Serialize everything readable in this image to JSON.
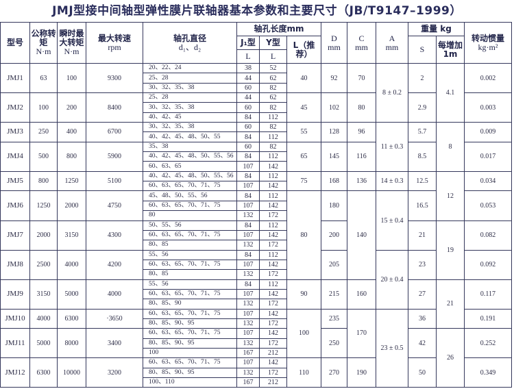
{
  "title": "JMJ型接中间轴型弹性膜片联轴器基本参数和主要尺寸（JB/T9147–1999）",
  "header": {
    "model": "型号",
    "torque": "公称转矩",
    "torque_unit": "N·m",
    "max_torque": "瞬时最大转矩",
    "max_torque_unit": "N·m",
    "speed": "最大转速",
    "speed_unit": "rpm",
    "bore": "轴孔直径",
    "bore_sub": "d₁、d₂",
    "bore_len": "轴孔长度mm",
    "j1": "J₁型",
    "y": "Y型",
    "l": "L",
    "l_rec": "L（推荐）",
    "d": "D",
    "d_unit": "mm",
    "c": "C",
    "c_unit": "mm",
    "a": "A",
    "a_unit": "mm",
    "weight": "重量 kg",
    "s": "S",
    "per_m": "每增加1m",
    "inertia": "转动惯量",
    "inertia_unit": "kg·m²"
  },
  "models": [
    {
      "model": "JMJ1",
      "torque": "63",
      "max_torque": "100",
      "speed": "9300",
      "D": "92",
      "S": "2",
      "inertia": "0.002",
      "bores": [
        [
          "20、22、24",
          "38",
          "52"
        ],
        [
          "25、28",
          "44",
          "62"
        ],
        [
          "30、32、35、38",
          "60",
          "82"
        ]
      ]
    },
    {
      "model": "JMJ2",
      "torque": "100",
      "max_torque": "200",
      "speed": "8400",
      "D": "102",
      "S": "2.9",
      "inertia": "0.003",
      "bores": [
        [
          "25、28",
          "44",
          "62"
        ],
        [
          "30、32、35、38",
          "60",
          "82"
        ],
        [
          "40、42、45",
          "84",
          "112"
        ]
      ]
    },
    {
      "model": "JMJ3",
      "torque": "250",
      "max_torque": "400",
      "speed": "6700",
      "D": "128",
      "S": "5.7",
      "inertia": "0.009",
      "bores": [
        [
          "30、32、35、38",
          "60",
          "82"
        ],
        [
          "40、42、45、48、50、55",
          "84",
          "112"
        ]
      ]
    },
    {
      "model": "JMJ4",
      "torque": "500",
      "max_torque": "800",
      "speed": "5900",
      "D": "145",
      "S": "8.5",
      "inertia": "0.017",
      "bores": [
        [
          "35、38",
          "60",
          "82"
        ],
        [
          "40、42、45、48、50、55、56",
          "84",
          "112"
        ],
        [
          "60、63、65",
          "107",
          "142"
        ]
      ]
    },
    {
      "model": "JMJ5",
      "torque": "800",
      "max_torque": "1250",
      "speed": "5100",
      "D": "168",
      "S": "12.5",
      "inertia": "0.034",
      "bores": [
        [
          "40、42、45、48、50、55、56",
          "84",
          "112"
        ],
        [
          "60、63、65、70、71、75",
          "107",
          "142"
        ]
      ]
    },
    {
      "model": "JMJ6",
      "torque": "1250",
      "max_torque": "2000",
      "speed": "4750",
      "D": "180",
      "S": "16.5",
      "inertia": "0.053",
      "bores": [
        [
          "45、48、50、55、56",
          "84",
          "112"
        ],
        [
          "60、63、65、70、71、75",
          "107",
          "142"
        ],
        [
          "80",
          "132",
          "172"
        ]
      ]
    },
    {
      "model": "JMJ7",
      "torque": "2000",
      "max_torque": "3150",
      "speed": "4300",
      "D": "200",
      "S": "21",
      "inertia": "0.082",
      "bores": [
        [
          "50、55、56",
          "84",
          "112"
        ],
        [
          "60、63、65、70、71、75",
          "107",
          "142"
        ],
        [
          "80、85",
          "132",
          "172"
        ]
      ]
    },
    {
      "model": "JMJ8",
      "torque": "2500",
      "max_torque": "4000",
      "speed": "4200",
      "D": "205",
      "S": "23",
      "inertia": "0.092",
      "bores": [
        [
          "55、56",
          "84",
          "112"
        ],
        [
          "60、63、65、70、71、75",
          "107",
          "142"
        ],
        [
          "80、85",
          "132",
          "172"
        ]
      ]
    },
    {
      "model": "JMJ9",
      "torque": "3150",
      "max_torque": "5000",
      "speed": "4000",
      "D": "215",
      "S": "27",
      "inertia": "0.117",
      "bores": [
        [
          "55、56",
          "84",
          "112"
        ],
        [
          "60、63、65、70、71、75",
          "107",
          "142"
        ],
        [
          "80、85、90",
          "132",
          "172"
        ]
      ]
    },
    {
      "model": "JMJ10",
      "torque": "4000",
      "max_torque": "6300",
      "speed": "·3650",
      "D": "235",
      "S": "36",
      "inertia": "0.191",
      "bores": [
        [
          "60、63、65、70、71、75",
          "107",
          "142"
        ],
        [
          "80、85、90、95",
          "132",
          "172"
        ]
      ]
    },
    {
      "model": "JMJ11",
      "torque": "5000",
      "max_torque": "8000",
      "speed": "3400",
      "D": "250",
      "S": "42",
      "inertia": "0.252",
      "bores": [
        [
          "60、63、65、70、71、75",
          "107",
          "142"
        ],
        [
          "80、85、90、95",
          "132",
          "172"
        ],
        [
          "100",
          "167",
          "212"
        ]
      ]
    },
    {
      "model": "JMJ12",
      "torque": "6300",
      "max_torque": "10000",
      "speed": "3200",
      "D": "270",
      "S": "50",
      "inertia": "0.349",
      "bores": [
        [
          "60、63、65、70、71、75",
          "107",
          "142"
        ],
        [
          "80、85、90、95",
          "132",
          "172"
        ],
        [
          "100、110",
          "167",
          "212"
        ]
      ]
    }
  ],
  "merged": {
    "L": [
      {
        "v": "40",
        "models": 1
      },
      {
        "v": "45",
        "models": 1
      },
      {
        "v": "55",
        "models": 1
      },
      {
        "v": "65",
        "models": 1
      },
      {
        "v": "75",
        "models": 1
      },
      {
        "v": "80",
        "models": 3
      },
      {
        "v": "90",
        "models": 1
      },
      {
        "v": "100",
        "models": 2
      },
      {
        "v": "110",
        "models": 1
      }
    ],
    "C": [
      {
        "v": "70",
        "models": 1
      },
      {
        "v": "80",
        "models": 1
      },
      {
        "v": "96",
        "models": 1
      },
      {
        "v": "116",
        "models": 1
      },
      {
        "v": "136",
        "models": 1
      },
      {
        "v": "140",
        "models": 3
      },
      {
        "v": "160",
        "models": 1
      },
      {
        "v": "170",
        "models": 2
      },
      {
        "v": "190",
        "models": 1
      }
    ],
    "A": [
      {
        "v": "8 ± 0.2",
        "models": 2
      },
      {
        "v": "11 ± 0.3",
        "models": 2
      },
      {
        "v": "14 ± 0.3",
        "models": 1
      },
      {
        "v": "15 ± 0.4",
        "models": 2
      },
      {
        "v": "20 ± 0.4",
        "models": 2
      },
      {
        "v": "23 ± 0.5",
        "models": 3
      }
    ],
    "per_m": [
      {
        "v": "4.1",
        "models": 2
      },
      {
        "v": "8",
        "models": 2
      },
      {
        "v": "12",
        "models": 2
      },
      {
        "v": "19",
        "models": 2
      },
      {
        "v": "21",
        "models": 2
      },
      {
        "v": "26",
        "models": 2
      }
    ]
  }
}
